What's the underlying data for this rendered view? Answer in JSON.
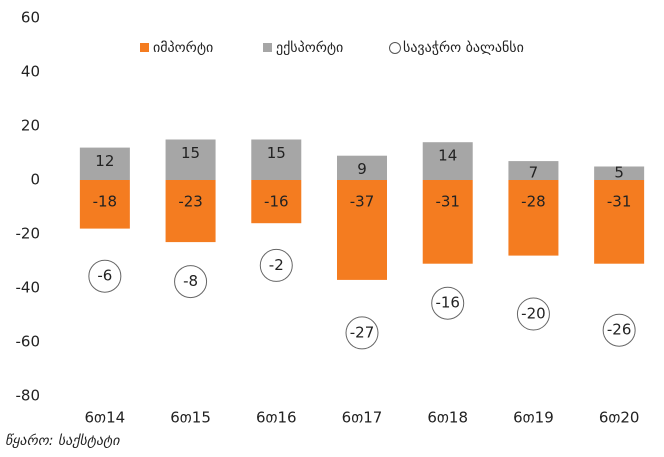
{
  "chart_data": {
    "type": "bar",
    "categories": [
      "6თ14",
      "6თ15",
      "6თ16",
      "6თ17",
      "6თ18",
      "6თ19",
      "6თ20"
    ],
    "series": [
      {
        "name": "იმპორტი",
        "color": "#f47c20",
        "values": [
          -18,
          -23,
          -16,
          -37,
          -31,
          -28,
          -31
        ]
      },
      {
        "name": "ექსპორტი",
        "color": "#a6a6a6",
        "values": [
          12,
          15,
          15,
          9,
          14,
          7,
          5
        ]
      },
      {
        "name": "სავაჭრო ბალანსი",
        "color": "#ffffff",
        "values": [
          -6,
          -8,
          -2,
          -27,
          -16,
          -20,
          -26
        ]
      }
    ],
    "ylim": [
      -80,
      60
    ],
    "yticks": [
      -80,
      -60,
      -40,
      -20,
      0,
      20,
      40,
      60
    ],
    "note": "წყარო: საქსტატი"
  }
}
